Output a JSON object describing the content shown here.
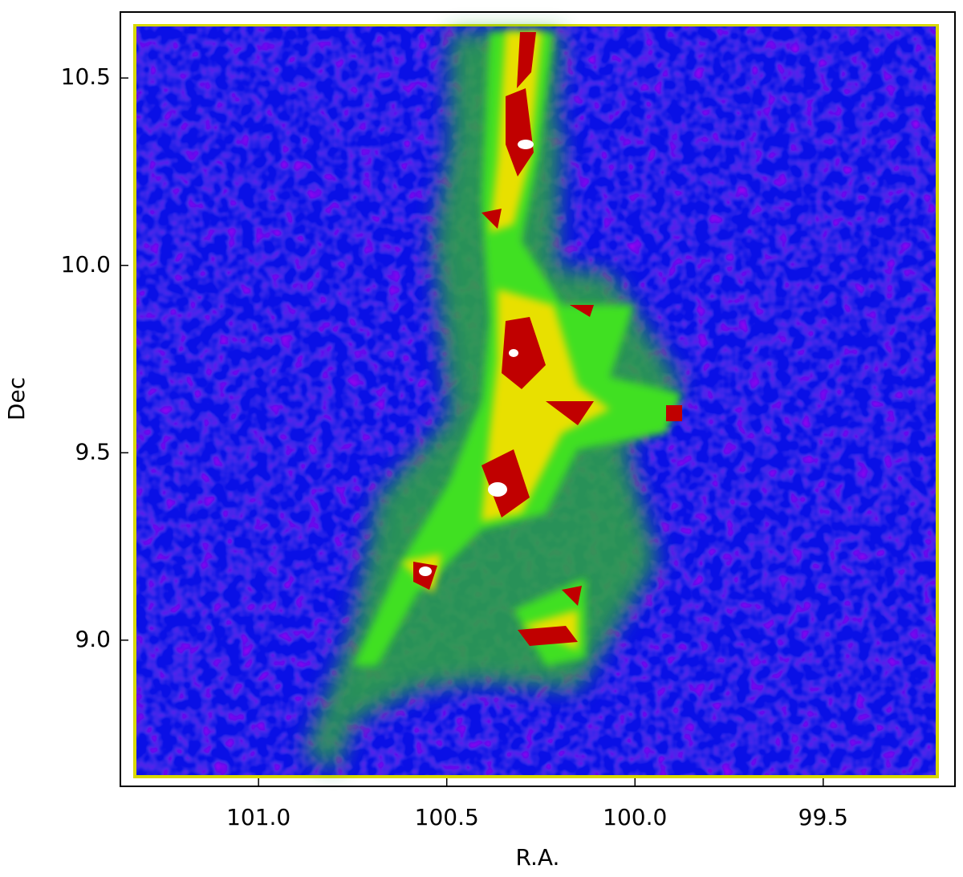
{
  "chart_data": {
    "type": "density-map",
    "xlabel": "R.A.",
    "ylabel": "Dec",
    "xlim": [
      101.367,
      99.15
    ],
    "ylim": [
      8.61,
      10.676
    ],
    "xticks": [
      {
        "value": 101,
        "label": "101.0"
      },
      100.5,
      {
        "value": 100,
        "label": "100.0"
      },
      99.5
    ],
    "yticks": [
      {
        "value": 9,
        "label": "9.0"
      },
      9.5,
      {
        "value": 10,
        "label": "10.0"
      },
      10.5
    ]
  }
}
